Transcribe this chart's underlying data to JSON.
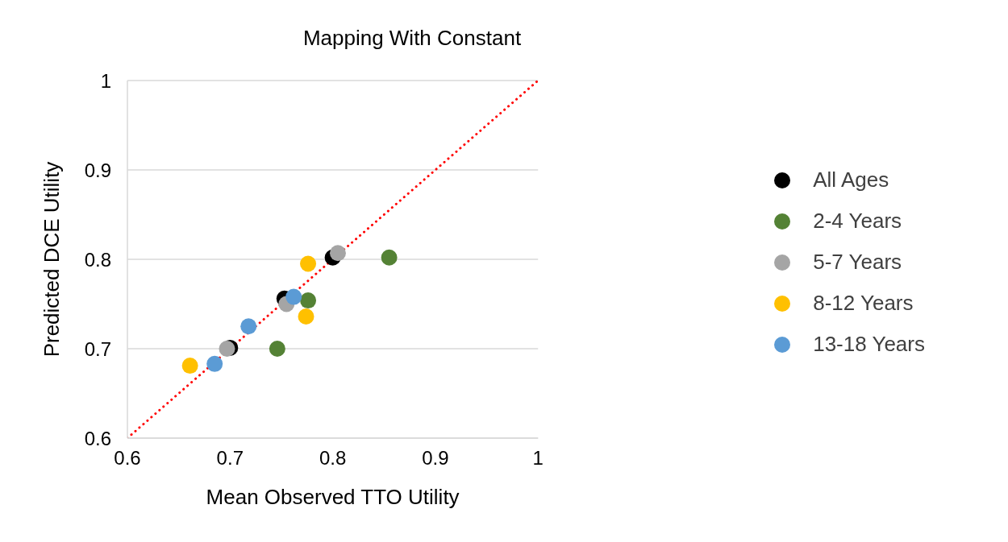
{
  "chart_data": {
    "type": "scatter",
    "title": "Mapping With Constant",
    "xlabel": "Mean Observed TTO Utility",
    "ylabel": "Predicted DCE Utility",
    "xlim": [
      0.6,
      1
    ],
    "xticks": [
      0.6,
      0.7,
      0.8,
      0.9,
      1
    ],
    "ylim": [
      0.6,
      1
    ],
    "yticks": [
      0.6,
      0.7,
      0.8,
      0.9,
      1
    ],
    "grid": "y",
    "legend": "right",
    "marker": "circle",
    "series": [
      {
        "name": "All Ages",
        "color": "#000000",
        "x": [
          0.8,
          0.753,
          0.7
        ],
        "values": [
          0.802,
          0.756,
          0.701
        ]
      },
      {
        "name": "2-4 Years",
        "color": "#548235",
        "x": [
          0.746,
          0.776,
          0.855
        ],
        "values": [
          0.7,
          0.754,
          0.802
        ]
      },
      {
        "name": "5-7 Years",
        "color": "#a5a5a5",
        "x": [
          0.805,
          0.755,
          0.697
        ],
        "values": [
          0.807,
          0.75,
          0.7
        ]
      },
      {
        "name": "8-12 Years",
        "color": "#ffc000",
        "x": [
          0.776,
          0.774,
          0.661
        ],
        "values": [
          0.795,
          0.736,
          0.681
        ]
      },
      {
        "name": "13-18 Years",
        "color": "#5b9bd5",
        "x": [
          0.762,
          0.718,
          0.685
        ],
        "values": [
          0.758,
          0.725,
          0.683
        ]
      },
      {
        "type": "line",
        "color": "#ff0000",
        "line_style": "dotted",
        "marker": "none",
        "x": [
          0.6,
          1
        ],
        "values": [
          0.6,
          1
        ]
      }
    ]
  }
}
